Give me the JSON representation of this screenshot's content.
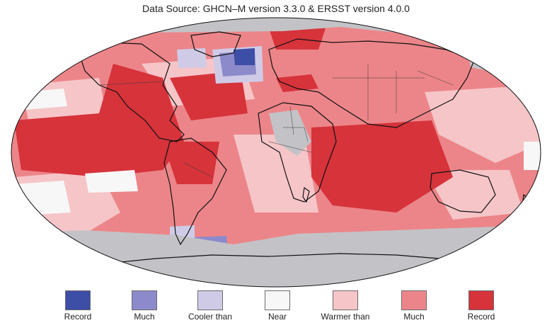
{
  "title": "Data Source: GHCN–M version 3.3.0 & ERSST version 4.0.0",
  "colors": {
    "ocean_missing": "#c3c3c7",
    "coast": "#111111",
    "border": "#3a3a3a"
  },
  "legend": [
    {
      "label": "Record",
      "color": "#3d4ea6"
    },
    {
      "label": "Much",
      "color": "#8d8acb"
    },
    {
      "label": "Cooler than",
      "color": "#cfcbe7"
    },
    {
      "label": "Near",
      "color": "#f7f7f7"
    },
    {
      "label": "Warmer than",
      "color": "#f6c5c8"
    },
    {
      "label": "Much",
      "color": "#ec8589"
    },
    {
      "label": "Record",
      "color": "#d6333b"
    }
  ]
}
